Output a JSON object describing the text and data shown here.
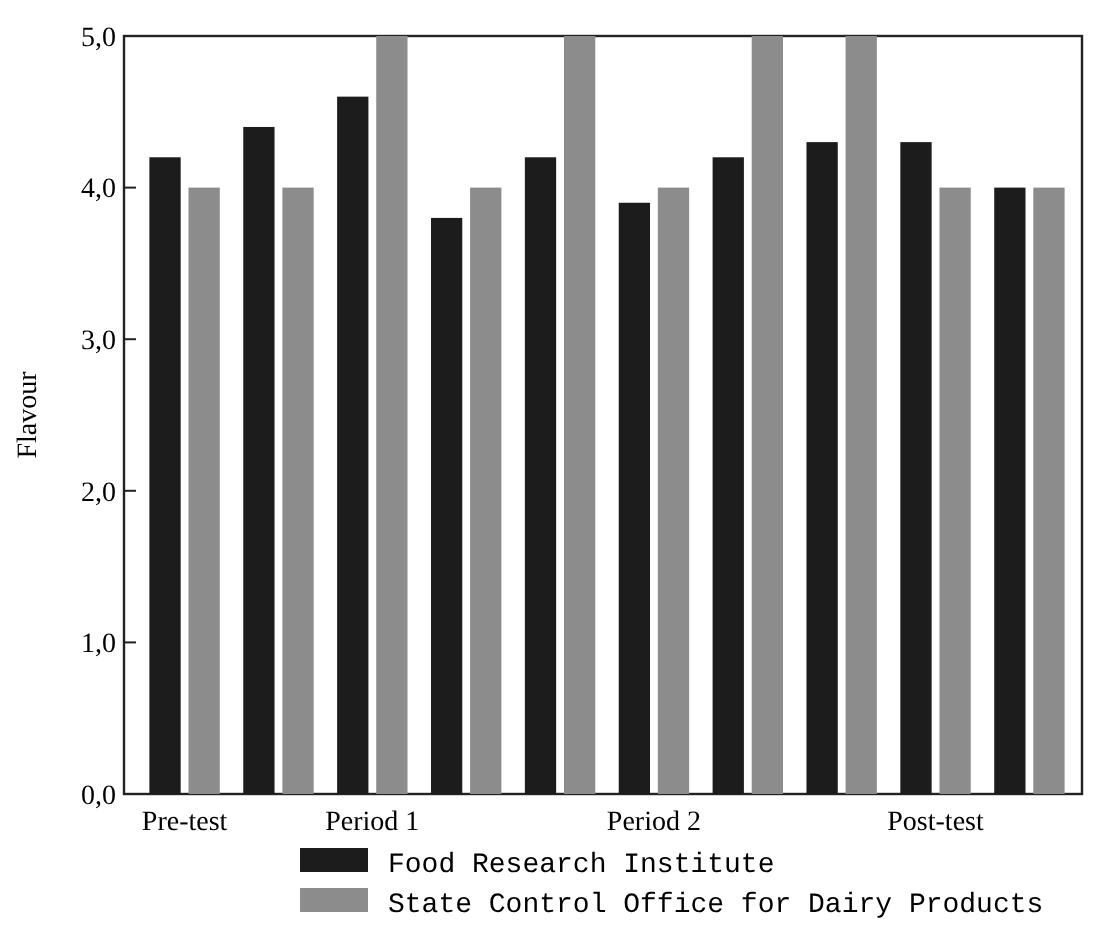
{
  "chart_data": {
    "type": "bar",
    "ylabel": "Flavour",
    "categories": [
      "Pre-test",
      null,
      "Period 1",
      null,
      null,
      "Period 2",
      null,
      null,
      "Post-test",
      null
    ],
    "series": [
      {
        "name": "Food Research Institute",
        "color": "#1c1c1c",
        "values": [
          4.2,
          4.4,
          4.6,
          3.8,
          4.2,
          3.9,
          4.2,
          4.3,
          4.3,
          4.0
        ]
      },
      {
        "name": "State Control Office for Dairy Products",
        "color": "#8c8c8c",
        "values": [
          4.0,
          4.0,
          5.0,
          4.0,
          5.0,
          4.0,
          5.0,
          5.0,
          4.0,
          4.0
        ]
      }
    ],
    "ylim": [
      0,
      5
    ],
    "yticks": [
      {
        "value": 0,
        "label": "0,0"
      },
      {
        "value": 1,
        "label": "1,0"
      },
      {
        "value": 2,
        "label": "2,0"
      },
      {
        "value": 3,
        "label": "3,0"
      },
      {
        "value": 4,
        "label": "4,0"
      },
      {
        "value": 5,
        "label": "5,0"
      }
    ],
    "grid": false,
    "legend": "bottom"
  }
}
